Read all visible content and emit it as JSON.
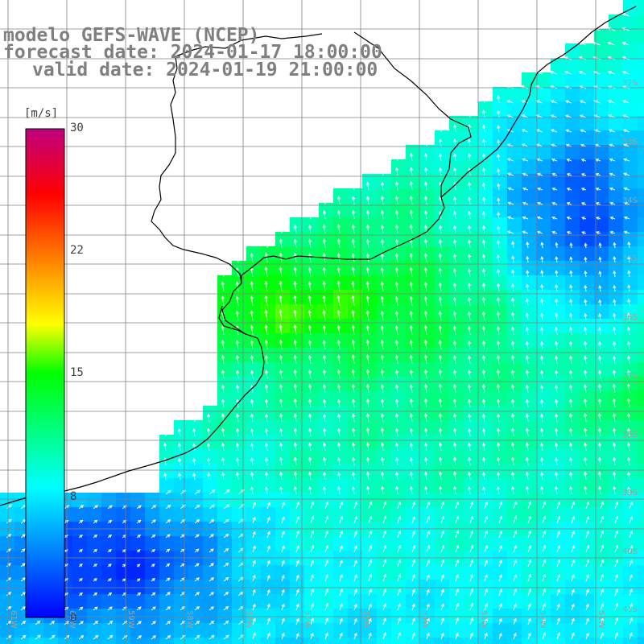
{
  "title": {
    "line1": "modelo GEFS-WAVE (NCEP)",
    "line2": "forecast date: 2024-01-17 18:00:00",
    "line3": "valid date: 2024-01-19 21:00:00"
  },
  "colorbar": {
    "unit": "[m/s]",
    "ticks": [
      "30",
      "22",
      "15",
      "8",
      "0"
    ],
    "colors": [
      "#0000ff",
      "#00ffff",
      "#00ff00",
      "#ffff00",
      "#ff8000",
      "#ff0000",
      "#c00080"
    ]
  },
  "lat_labels": [
    "32S",
    "33S",
    "34S",
    "35S",
    "36S",
    "37S",
    "38S",
    "39S",
    "40S",
    "41S"
  ],
  "lon_labels": [
    "61W",
    "60W",
    "59W",
    "58W",
    "57W",
    "56W",
    "55W",
    "54W",
    "53W",
    "52W",
    "51W"
  ],
  "map": {
    "land_color": "#ffffff",
    "coast_color": "#000000",
    "grid_color": "#808080",
    "arrow_color": "#ffffff"
  }
}
